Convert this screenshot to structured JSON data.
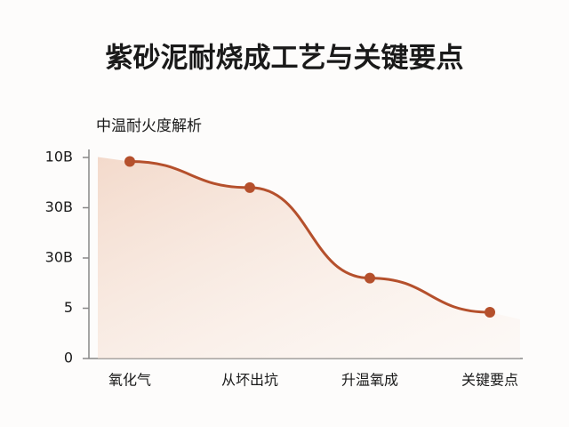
{
  "chart_data": {
    "type": "line",
    "title": "紫砂泥耐烧成工艺与关键要点",
    "subtitle": "中温耐火度解析",
    "categories": [
      "氧化气",
      "从坏出坑",
      "升温氧成",
      "关键要点"
    ],
    "series": [
      {
        "color": "#b5502c",
        "values": [
          19.6,
          17.0,
          8.0,
          4.6
        ]
      }
    ],
    "ylim": [
      0,
      20
    ],
    "yticks": [
      0,
      5,
      {
        "value": 10,
        "label": "30B"
      },
      {
        "value": 15,
        "label": "30B"
      },
      {
        "value": 20,
        "label": "10B"
      }
    ]
  }
}
